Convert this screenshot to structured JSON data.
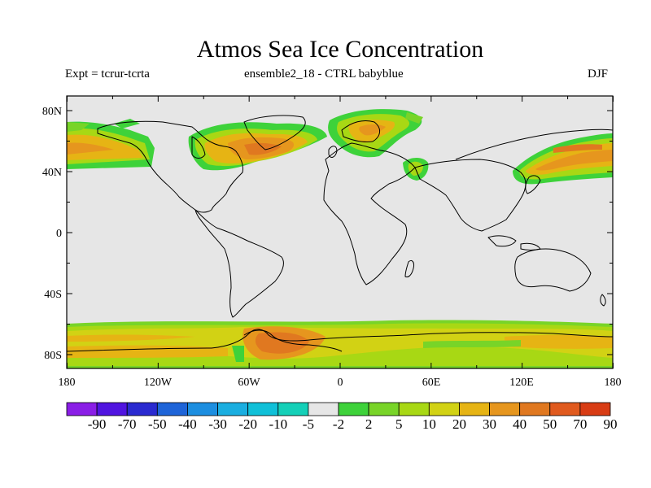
{
  "title": "Atmos Sea Ice Concentration",
  "subtitle_left": "Expt = tcrur-tcrta",
  "subtitle_center": "ensemble2_18 - CTRL babyblue",
  "subtitle_right": "DJF",
  "lat_ticks": [
    "80N",
    "40N",
    "0",
    "40S",
    "80S"
  ],
  "lon_ticks": [
    "180",
    "120W",
    "60W",
    "0",
    "60E",
    "120E",
    "180"
  ],
  "colorbar_labels": [
    "-90",
    "-70",
    "-50",
    "-40",
    "-30",
    "-20",
    "-10",
    "-5",
    "-2",
    "2",
    "5",
    "10",
    "20",
    "30",
    "40",
    "50",
    "70",
    "90"
  ],
  "colorbar_colors": [
    "#8a1ee6",
    "#5014e0",
    "#2a2ad0",
    "#1e64d8",
    "#1c8ee0",
    "#1aaee0",
    "#10c0d8",
    "#14d0b8",
    "#e6e6e6",
    "#3ed23a",
    "#78d428",
    "#a8d814",
    "#d2d214",
    "#e6b414",
    "#e6961e",
    "#e07820",
    "#e05a1e",
    "#d83c14"
  ],
  "colors": {
    "ocean_background": "#e6e6e6",
    "coastline": "#000000"
  }
}
